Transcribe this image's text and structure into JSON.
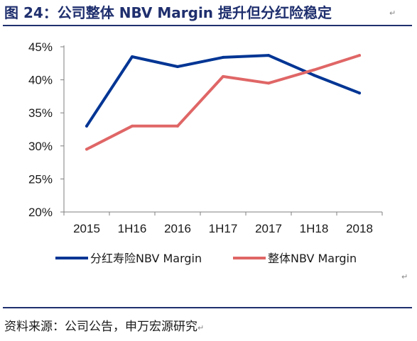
{
  "title": "图 24：公司整体 NBV Margin 提升但分红险稳定",
  "source": "资料来源：公司公告，申万宏源研究",
  "paragraph_mark": "↵",
  "colors": {
    "accent": "#1f2f6e",
    "series_dividend": "#003594",
    "series_overall": "#e06666"
  },
  "chart_data": {
    "type": "line",
    "title": "",
    "xlabel": "",
    "ylabel": "",
    "categories": [
      "2015",
      "1H16",
      "2016",
      "1H17",
      "2017",
      "1H18",
      "2018"
    ],
    "y_ticks": [
      "20%",
      "25%",
      "30%",
      "35%",
      "40%",
      "45%"
    ],
    "ylim": [
      20,
      45
    ],
    "grid": false,
    "legend_position": "bottom",
    "series": [
      {
        "name": "分红寿险NBV Margin",
        "color": "#003594",
        "values": [
          33.0,
          43.5,
          42.0,
          43.4,
          43.7,
          40.7,
          38.0
        ]
      },
      {
        "name": "整体NBV Margin",
        "color": "#e06666",
        "values": [
          29.5,
          33.0,
          33.0,
          40.5,
          39.5,
          41.5,
          43.7
        ]
      }
    ]
  }
}
